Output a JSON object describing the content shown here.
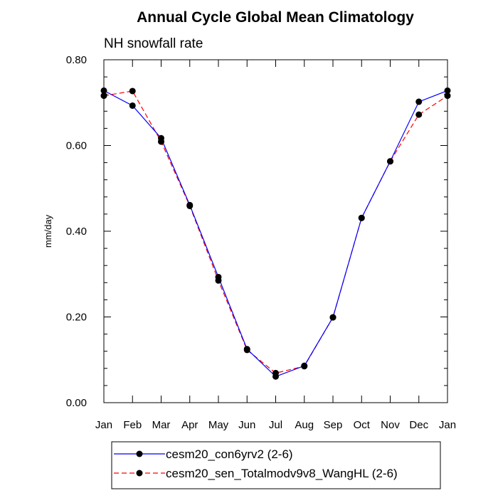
{
  "chart_data": {
    "type": "line",
    "title": "Annual Cycle Global Mean Climatology",
    "subtitle": "NH snowfall rate",
    "xlabel": "",
    "ylabel": "mm/day",
    "categories": [
      "Jan",
      "Feb",
      "Mar",
      "Apr",
      "May",
      "Jun",
      "Jul",
      "Aug",
      "Sep",
      "Oct",
      "Nov",
      "Dec",
      "Jan"
    ],
    "ylim": [
      0,
      0.8
    ],
    "yticks": [
      "0.00",
      "0.20",
      "0.40",
      "0.60",
      "0.80"
    ],
    "grid": false,
    "legend_position": "bottom",
    "series": [
      {
        "name": "cesm20_con6yrv2 (2-6)",
        "color": "#0000ff",
        "line_style": "solid",
        "values": [
          0.728,
          0.693,
          0.617,
          0.461,
          0.293,
          0.125,
          0.061,
          0.086,
          0.199,
          0.431,
          0.563,
          0.702,
          0.728
        ]
      },
      {
        "name": "cesm20_sen_Totalmodv9v8_WangHL (2-6)",
        "color": "#ff0000",
        "line_style": "dashed",
        "values": [
          0.716,
          0.727,
          0.609,
          0.459,
          0.285,
          0.123,
          0.069,
          0.085,
          0.199,
          0.431,
          0.563,
          0.672,
          0.716
        ]
      }
    ]
  }
}
